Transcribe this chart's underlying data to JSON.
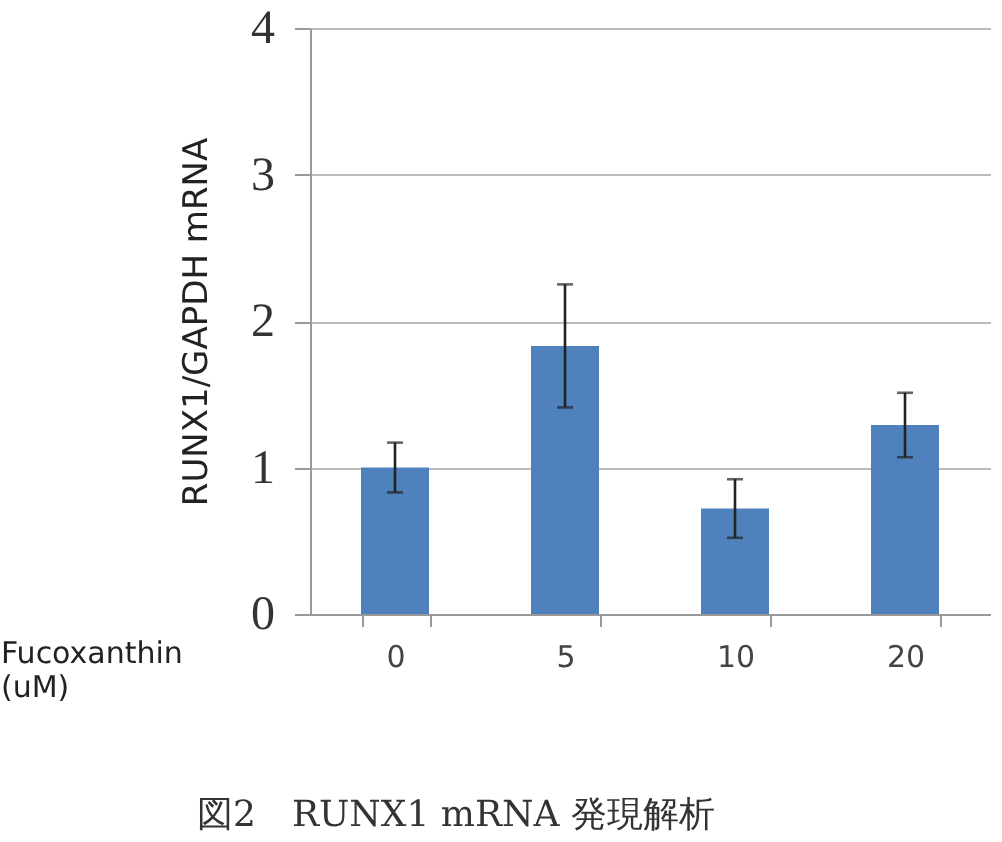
{
  "chart_data": {
    "type": "bar",
    "xlabel": "Fucoxanthin (uM)",
    "ylabel": "RUNX1/GAPDH mRNA",
    "categories": [
      "0",
      "5",
      "10",
      "20"
    ],
    "values": [
      1.0,
      1.83,
      0.72,
      1.29
    ],
    "errors": [
      0.17,
      0.42,
      0.2,
      0.22
    ],
    "color": "#4f81bd",
    "ylim": [
      0,
      4
    ],
    "yticks": [
      0,
      1,
      2,
      3,
      4
    ],
    "grid": "y",
    "annotations": [
      "図2　RUNX1 mRNA 発現解析"
    ]
  }
}
